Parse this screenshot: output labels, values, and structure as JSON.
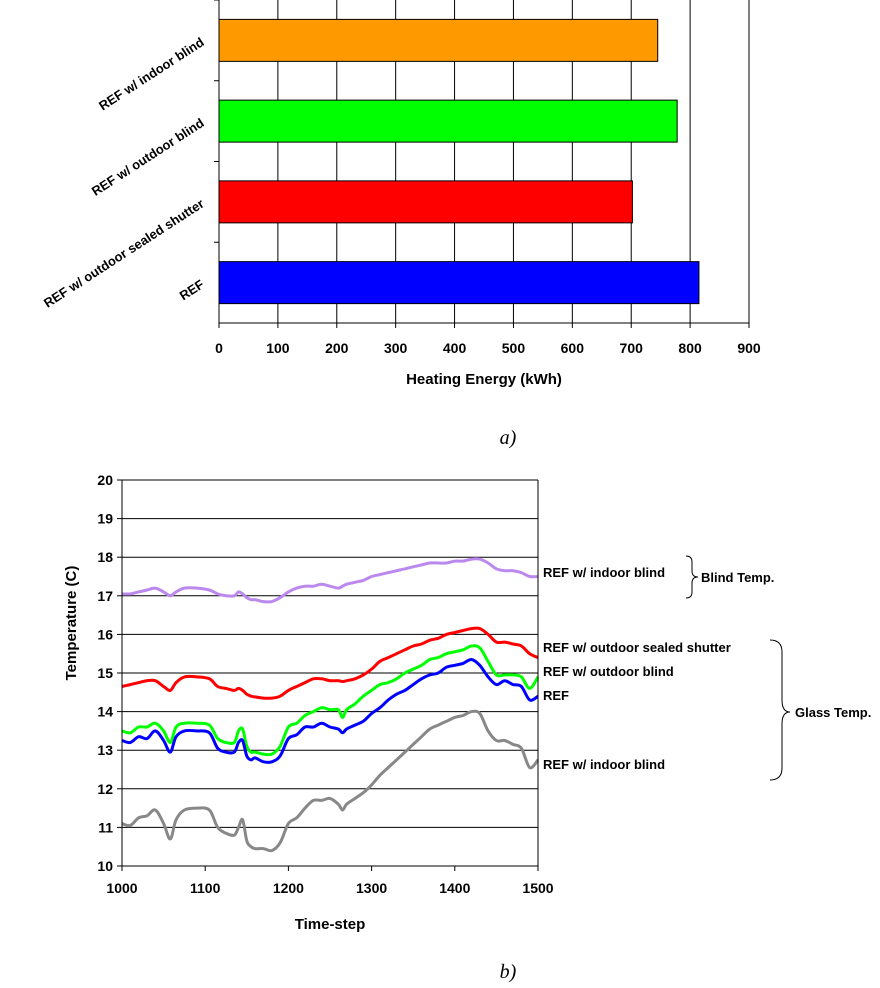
{
  "chart_data": [
    {
      "type": "bar",
      "orientation": "horizontal",
      "categories": [
        "REF w/ indoor blind",
        "REF w/ outdoor blind",
        "REF w/ outdoor sealed shutter",
        "REF"
      ],
      "values": [
        745,
        778,
        702,
        815
      ],
      "colors": [
        "#ff9900",
        "#00ff00",
        "#ff0000",
        "#0000ff"
      ],
      "xlabel": "Heating Energy (kWh)",
      "xlim": [
        0,
        900
      ],
      "xticks": [
        "0",
        "100",
        "200",
        "300",
        "400",
        "500",
        "600",
        "700",
        "800",
        "900"
      ],
      "grid": "vertical",
      "caption": "a)"
    },
    {
      "type": "line",
      "xlabel": "Time-step",
      "ylabel": "Temperature (C)",
      "xlim": [
        1000,
        1500
      ],
      "ylim": [
        10,
        20
      ],
      "xticks": [
        "1000",
        "1100",
        "1200",
        "1300",
        "1400",
        "1500"
      ],
      "yticks": [
        "10",
        "11",
        "12",
        "13",
        "14",
        "15",
        "16",
        "17",
        "18",
        "19",
        "20"
      ],
      "grid": "horizontal",
      "x": [
        1000,
        1010,
        1020,
        1030,
        1040,
        1050,
        1058,
        1065,
        1075,
        1090,
        1105,
        1115,
        1125,
        1135,
        1140,
        1145,
        1150,
        1155,
        1160,
        1170,
        1180,
        1190,
        1200,
        1210,
        1220,
        1230,
        1240,
        1250,
        1260,
        1265,
        1270,
        1280,
        1290,
        1300,
        1310,
        1320,
        1330,
        1340,
        1350,
        1360,
        1370,
        1380,
        1390,
        1400,
        1410,
        1420,
        1430,
        1440,
        1450,
        1460,
        1470,
        1480,
        1490,
        1500
      ],
      "series": [
        {
          "name": "REF w/ indoor blind",
          "color": "#bb88ee",
          "values": [
            17.05,
            17.05,
            17.1,
            17.15,
            17.2,
            17.1,
            17.0,
            17.1,
            17.2,
            17.2,
            17.15,
            17.05,
            17.0,
            17.0,
            17.1,
            17.05,
            16.95,
            16.9,
            16.9,
            16.85,
            16.85,
            16.95,
            17.1,
            17.2,
            17.25,
            17.25,
            17.3,
            17.25,
            17.2,
            17.25,
            17.3,
            17.35,
            17.4,
            17.5,
            17.55,
            17.6,
            17.65,
            17.7,
            17.75,
            17.8,
            17.85,
            17.85,
            17.85,
            17.9,
            17.9,
            17.95,
            17.95,
            17.85,
            17.7,
            17.65,
            17.65,
            17.6,
            17.5,
            17.5
          ]
        },
        {
          "name": "REF w/ outdoor sealed shutter",
          "color": "#ff0000",
          "values": [
            14.65,
            14.7,
            14.75,
            14.8,
            14.8,
            14.65,
            14.55,
            14.75,
            14.9,
            14.9,
            14.85,
            14.65,
            14.6,
            14.55,
            14.6,
            14.55,
            14.45,
            14.4,
            14.38,
            14.35,
            14.35,
            14.4,
            14.55,
            14.65,
            14.75,
            14.85,
            14.85,
            14.8,
            14.8,
            14.78,
            14.8,
            14.85,
            14.95,
            15.1,
            15.3,
            15.4,
            15.5,
            15.6,
            15.7,
            15.75,
            15.85,
            15.9,
            16.0,
            16.05,
            16.1,
            16.15,
            16.15,
            16.0,
            15.8,
            15.8,
            15.75,
            15.7,
            15.5,
            15.4
          ]
        },
        {
          "name": "REF w/ outdoor blind",
          "color": "#00ff00",
          "values": [
            13.5,
            13.45,
            13.6,
            13.6,
            13.7,
            13.5,
            13.2,
            13.6,
            13.7,
            13.7,
            13.65,
            13.3,
            13.2,
            13.2,
            13.5,
            13.55,
            13.1,
            12.95,
            12.95,
            12.9,
            12.9,
            13.1,
            13.6,
            13.7,
            13.9,
            14.0,
            14.1,
            14.05,
            14.05,
            13.85,
            14.05,
            14.2,
            14.4,
            14.55,
            14.7,
            14.75,
            14.85,
            15.0,
            15.1,
            15.2,
            15.35,
            15.4,
            15.5,
            15.55,
            15.6,
            15.7,
            15.65,
            15.3,
            14.95,
            14.95,
            14.95,
            14.9,
            14.6,
            14.9
          ]
        },
        {
          "name": "REF",
          "color": "#0000ff",
          "values": [
            13.25,
            13.2,
            13.35,
            13.3,
            13.5,
            13.25,
            12.95,
            13.35,
            13.5,
            13.5,
            13.45,
            13.05,
            12.95,
            12.95,
            13.2,
            13.25,
            12.85,
            12.75,
            12.8,
            12.7,
            12.7,
            12.85,
            13.3,
            13.4,
            13.6,
            13.6,
            13.7,
            13.6,
            13.55,
            13.45,
            13.55,
            13.65,
            13.75,
            13.95,
            14.1,
            14.3,
            14.45,
            14.55,
            14.7,
            14.85,
            14.95,
            15.0,
            15.15,
            15.2,
            15.25,
            15.35,
            15.2,
            14.9,
            14.7,
            14.8,
            14.7,
            14.65,
            14.3,
            14.4
          ]
        },
        {
          "name": "REF w/ indoor blind",
          "color": "#888888",
          "values": [
            11.1,
            11.05,
            11.25,
            11.3,
            11.45,
            11.1,
            10.7,
            11.2,
            11.45,
            11.5,
            11.45,
            11.0,
            10.85,
            10.8,
            11.0,
            11.2,
            10.65,
            10.5,
            10.45,
            10.45,
            10.4,
            10.6,
            11.1,
            11.25,
            11.5,
            11.7,
            11.7,
            11.75,
            11.6,
            11.45,
            11.6,
            11.75,
            11.9,
            12.1,
            12.35,
            12.55,
            12.75,
            12.95,
            13.15,
            13.35,
            13.55,
            13.65,
            13.75,
            13.85,
            13.9,
            14.0,
            13.95,
            13.5,
            13.25,
            13.25,
            13.15,
            13.05,
            12.55,
            12.75
          ]
        }
      ],
      "annotations": [
        "Blind Temp.",
        "Glass Temp."
      ],
      "caption": "b)"
    }
  ]
}
